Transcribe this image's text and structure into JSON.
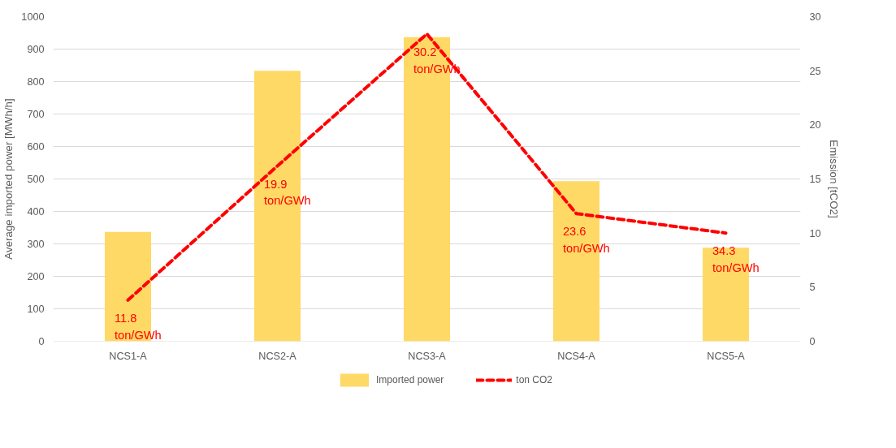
{
  "chart_data": {
    "type": "bar",
    "categories": [
      "NCS1-A",
      "NCS2-A",
      "NCS3-A",
      "NCS4-A",
      "NCS5-A"
    ],
    "ylabel": "Average imported power [MWh/h]",
    "y2label": "Emission [tCO2]",
    "ylim": [
      0,
      1000
    ],
    "yticks": [
      0,
      100,
      200,
      300,
      400,
      500,
      600,
      700,
      800,
      900,
      1000
    ],
    "y2lim": [
      0,
      30
    ],
    "y2ticks": [
      0,
      5,
      10,
      15,
      20,
      25,
      30
    ],
    "series": [
      {
        "name": "Imported power",
        "type": "bar",
        "color": "#ffd966",
        "values": [
          337,
          833,
          937,
          493,
          288
        ]
      },
      {
        "name": "ton CO2",
        "type": "line",
        "axis": "y2",
        "color": "#ff0000",
        "line_style": "dashed",
        "values": [
          3.8,
          16.2,
          28.4,
          11.8,
          10.0
        ]
      }
    ],
    "annotations": [
      "11.8\nton/GWh",
      "19.9\nton/GWh",
      "30.2\nton/GWh",
      "23.6\nton/GWh",
      "34.3\nton/GWh"
    ],
    "grid": "y",
    "legend": "bottom"
  }
}
